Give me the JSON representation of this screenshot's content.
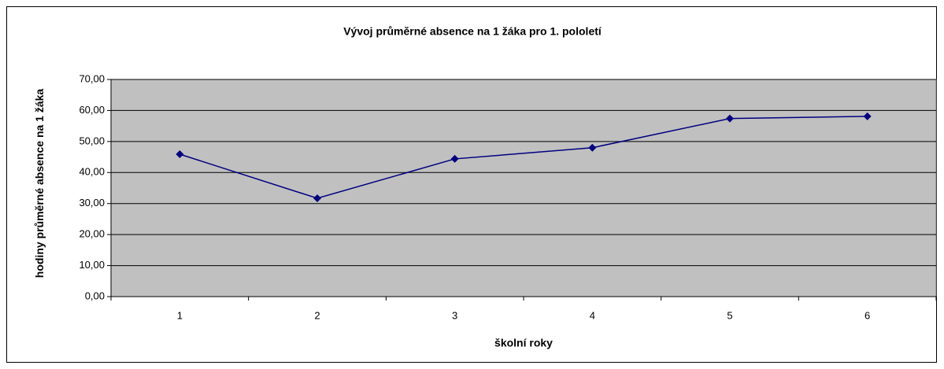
{
  "chart_data": {
    "type": "line",
    "title": "Vývoj průměrné absence na 1 žáka pro 1. pololetí",
    "xlabel": "školní roky",
    "ylabel": "hodiny průměrné absence na 1 žáka",
    "categories": [
      "1",
      "2",
      "3",
      "4",
      "5",
      "6"
    ],
    "values": [
      45.9,
      31.7,
      44.4,
      48.0,
      57.4,
      58.1
    ],
    "color": "#000080",
    "plot_background": "#c0c0c0",
    "ylim": [
      0,
      70
    ],
    "yticks": [
      {
        "value": 0,
        "label": "0,00"
      },
      {
        "value": 10,
        "label": "10,00"
      },
      {
        "value": 20,
        "label": "20,00"
      },
      {
        "value": 30,
        "label": "30,00"
      },
      {
        "value": 40,
        "label": "40,00"
      },
      {
        "value": 50,
        "label": "50,00"
      },
      {
        "value": 60,
        "label": "60,00"
      },
      {
        "value": 70,
        "label": "70,00"
      }
    ],
    "grid": true
  }
}
